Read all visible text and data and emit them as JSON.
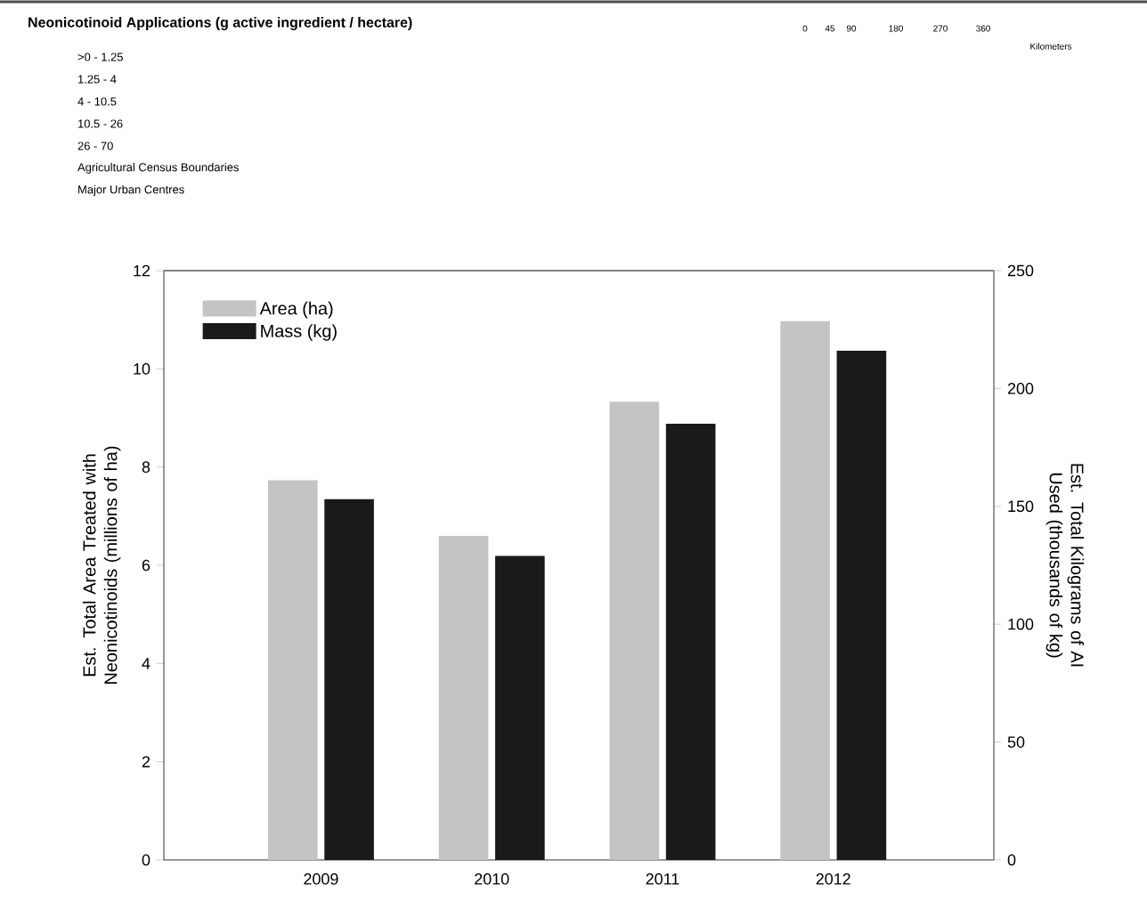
{
  "chart_data": {
    "type": "bar",
    "title": "Neonicotinoid Applications (g active ingredient / hectare)",
    "annotations": [
      ">0 - 1.25",
      "1.25 - 4",
      "4 - 10.5",
      "10.5 - 26",
      "26 - 70",
      "Agricultural Census Boundaries",
      "Major Urban Centres",
      "0",
      "45",
      "90",
      "180",
      "270",
      "360",
      "Kilometers"
    ],
    "categories": [
      "2009",
      "2010",
      "2011",
      "2012"
    ],
    "series": [
      {
        "name": "Area (ha)",
        "color": "#c4c4c4",
        "values": [
          7.73,
          6.6,
          9.33,
          10.97
        ]
      },
      {
        "name": "Mass (kg)",
        "color": "#1a1a1a",
        "axis": "y2",
        "values": [
          153,
          129,
          185,
          216
        ]
      }
    ],
    "ylabel": "Est. Total Area Treated with Neonicotinoids (millions of ha)",
    "y2label": "Est. Total Kilograms of AI Used (thousands of kg)",
    "ylim": [
      0,
      12
    ],
    "yticks": [
      0,
      2,
      4,
      6,
      8,
      10,
      12
    ],
    "y2lim": [
      0,
      250
    ],
    "y2ticks": [
      0,
      50,
      100,
      150,
      200,
      250
    ],
    "legend": "top left"
  }
}
